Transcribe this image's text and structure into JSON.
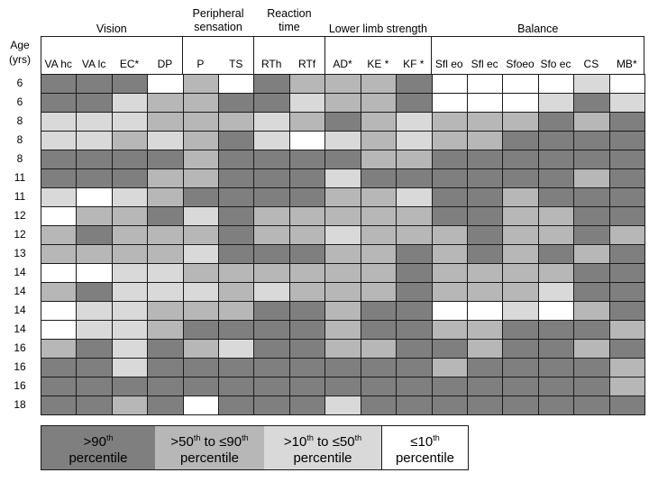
{
  "chart_data": {
    "type": "heatmap",
    "row_header": [
      "Age",
      "(yrs)"
    ],
    "groups": [
      {
        "name": "Vision",
        "span": 4
      },
      {
        "name": "Peripheral sensation",
        "span": 2
      },
      {
        "name": "Reaction time",
        "span": 2
      },
      {
        "name": "Lower limb strength",
        "span": 3
      },
      {
        "name": "Balance",
        "span": 6
      }
    ],
    "columns": [
      "VA hc",
      "VA lc",
      "EC*",
      "DP",
      "P",
      "TS",
      "RTh",
      "RTf",
      "AD*",
      "KE *",
      "KF *",
      "Sfl eo",
      "Sfl ec",
      "Sfoeo",
      "Sfo ec",
      "CS",
      "MB*"
    ],
    "rows": [
      "6",
      "6",
      "8",
      "8",
      "8",
      "11",
      "11",
      "12",
      "12",
      "13",
      "14",
      "14",
      "14",
      "14",
      "16",
      "16",
      "16",
      "18"
    ],
    "levels": [
      {
        "code": 0,
        "label": ">90th percentile",
        "color": "#7f7f7f"
      },
      {
        "code": 1,
        "label": ">50th to ≤90th percentile",
        "color": "#b7b7b7"
      },
      {
        "code": 2,
        "label": ">10th to ≤50th percentile",
        "color": "#d9d9d9"
      },
      {
        "code": 3,
        "label": "≤10th percentile",
        "color": "#ffffff"
      }
    ],
    "values": [
      [
        0,
        0,
        0,
        3,
        1,
        3,
        0,
        1,
        1,
        1,
        0,
        3,
        3,
        3,
        3,
        2,
        3
      ],
      [
        0,
        0,
        2,
        1,
        1,
        0,
        0,
        2,
        1,
        1,
        0,
        3,
        3,
        3,
        2,
        0,
        2
      ],
      [
        2,
        2,
        2,
        1,
        1,
        1,
        2,
        1,
        0,
        1,
        2,
        1,
        1,
        1,
        0,
        1,
        0
      ],
      [
        2,
        2,
        1,
        2,
        1,
        0,
        2,
        3,
        2,
        1,
        2,
        1,
        1,
        0,
        0,
        0,
        0
      ],
      [
        0,
        0,
        0,
        0,
        1,
        0,
        0,
        0,
        0,
        1,
        1,
        0,
        0,
        0,
        0,
        0,
        0
      ],
      [
        0,
        0,
        0,
        1,
        1,
        0,
        0,
        0,
        2,
        0,
        0,
        0,
        0,
        0,
        0,
        1,
        0
      ],
      [
        2,
        3,
        2,
        1,
        0,
        0,
        0,
        0,
        1,
        1,
        2,
        0,
        0,
        1,
        0,
        0,
        0
      ],
      [
        3,
        1,
        1,
        0,
        2,
        0,
        1,
        1,
        1,
        1,
        1,
        0,
        0,
        1,
        1,
        0,
        0
      ],
      [
        1,
        0,
        1,
        1,
        1,
        0,
        1,
        1,
        2,
        1,
        1,
        1,
        0,
        1,
        1,
        0,
        1
      ],
      [
        1,
        1,
        1,
        1,
        2,
        0,
        0,
        0,
        1,
        1,
        0,
        1,
        0,
        1,
        0,
        1,
        0
      ],
      [
        3,
        3,
        2,
        2,
        1,
        1,
        1,
        1,
        1,
        1,
        0,
        1,
        1,
        1,
        1,
        0,
        0
      ],
      [
        1,
        0,
        2,
        2,
        2,
        1,
        2,
        1,
        1,
        1,
        0,
        1,
        1,
        1,
        2,
        0,
        0
      ],
      [
        3,
        2,
        2,
        1,
        1,
        1,
        0,
        0,
        1,
        0,
        0,
        3,
        3,
        2,
        3,
        1,
        0
      ],
      [
        3,
        2,
        2,
        1,
        0,
        0,
        0,
        0,
        1,
        0,
        0,
        1,
        1,
        0,
        0,
        0,
        1
      ],
      [
        1,
        0,
        2,
        0,
        1,
        2,
        0,
        0,
        1,
        1,
        0,
        0,
        1,
        0,
        0,
        1,
        0
      ],
      [
        0,
        0,
        2,
        0,
        0,
        0,
        0,
        0,
        0,
        0,
        0,
        1,
        0,
        0,
        0,
        0,
        1
      ],
      [
        0,
        0,
        0,
        0,
        0,
        0,
        0,
        0,
        0,
        0,
        0,
        0,
        0,
        0,
        0,
        0,
        1
      ],
      [
        0,
        0,
        1,
        0,
        3,
        0,
        0,
        0,
        2,
        0,
        0,
        0,
        0,
        0,
        0,
        0,
        0
      ]
    ]
  }
}
